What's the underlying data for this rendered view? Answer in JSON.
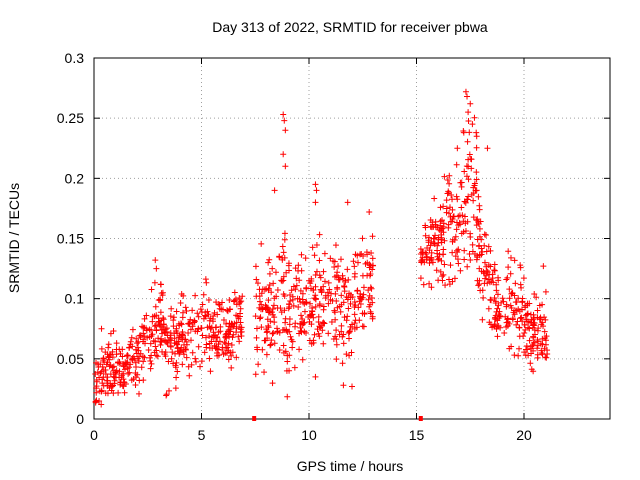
{
  "chart_data": {
    "type": "scatter",
    "title": "Day 313 of 2022, SRMTID for receiver pbwa",
    "xlabel": "GPS time / hours",
    "ylabel": "SRMTID / TECUs",
    "xlim": [
      0,
      24
    ],
    "ylim": [
      0,
      0.3
    ],
    "xticks": [
      0,
      5,
      10,
      15,
      20
    ],
    "xtick_labels": [
      "0",
      "5",
      "10",
      "15",
      "20"
    ],
    "yticks": [
      0,
      0.05,
      0.1,
      0.15,
      0.2,
      0.25,
      0.3
    ],
    "ytick_labels": [
      "0",
      "0.05",
      "0.1",
      "0.15",
      "0.2",
      "0.25",
      "0.3"
    ],
    "grid": true,
    "marker": "+",
    "color": "#ff0000",
    "baseline_markers": [
      7.45,
      15.2
    ],
    "series": [
      {
        "name": "SRMTID",
        "segments": [
          {
            "x_range": [
              0.0,
              0.7
            ],
            "mean": [
              0.028,
              0.045
            ],
            "spread": 0.014,
            "count": 50
          },
          {
            "x_range": [
              0.7,
              2.2
            ],
            "mean": [
              0.04,
              0.05
            ],
            "spread": 0.012,
            "count": 110
          },
          {
            "x_range": [
              2.2,
              3.3
            ],
            "mean": [
              0.06,
              0.082
            ],
            "spread": 0.016,
            "count": 80
          },
          {
            "x_range": [
              3.3,
              5.2
            ],
            "mean": [
              0.055,
              0.078
            ],
            "spread": 0.016,
            "count": 130
          },
          {
            "x_range": [
              5.2,
              6.5
            ],
            "mean": [
              0.072,
              0.075
            ],
            "spread": 0.015,
            "count": 100
          },
          {
            "x_range": [
              6.5,
              6.9
            ],
            "mean": [
              0.08,
              0.08
            ],
            "spread": 0.015,
            "count": 30
          },
          {
            "x_range": [
              7.5,
              8.6
            ],
            "mean": [
              0.085,
              0.095
            ],
            "spread": 0.02,
            "count": 80
          },
          {
            "x_range": [
              8.6,
              9.1
            ],
            "mean": [
              0.1,
              0.105
            ],
            "spread": 0.03,
            "count": 45
          },
          {
            "x_range": [
              9.1,
              10.5
            ],
            "mean": [
              0.09,
              0.1
            ],
            "spread": 0.022,
            "count": 100
          },
          {
            "x_range": [
              10.5,
              12.0
            ],
            "mean": [
              0.1,
              0.09
            ],
            "spread": 0.022,
            "count": 100
          },
          {
            "x_range": [
              12.0,
              13.0
            ],
            "mean": [
              0.095,
              0.11
            ],
            "spread": 0.02,
            "count": 70
          },
          {
            "x_range": [
              15.2,
              16.0
            ],
            "mean": [
              0.13,
              0.15
            ],
            "spread": 0.017,
            "count": 60
          },
          {
            "x_range": [
              16.0,
              17.0
            ],
            "mean": [
              0.15,
              0.16
            ],
            "spread": 0.025,
            "count": 80
          },
          {
            "x_range": [
              17.0,
              17.8
            ],
            "mean": [
              0.17,
              0.19
            ],
            "spread": 0.03,
            "count": 60
          },
          {
            "x_range": [
              17.8,
              18.5
            ],
            "mean": [
              0.16,
              0.1
            ],
            "spread": 0.025,
            "count": 60
          },
          {
            "x_range": [
              18.5,
              20.0
            ],
            "mean": [
              0.1,
              0.09
            ],
            "spread": 0.018,
            "count": 100
          },
          {
            "x_range": [
              20.0,
              21.1
            ],
            "mean": [
              0.07,
              0.07
            ],
            "spread": 0.015,
            "count": 90
          }
        ],
        "peaks": [
          {
            "x": 8.8,
            "y": 0.253
          },
          {
            "x": 8.85,
            "y": 0.248
          },
          {
            "x": 8.9,
            "y": 0.24
          },
          {
            "x": 8.8,
            "y": 0.22
          },
          {
            "x": 8.9,
            "y": 0.21
          },
          {
            "x": 8.4,
            "y": 0.19
          },
          {
            "x": 10.3,
            "y": 0.195
          },
          {
            "x": 10.35,
            "y": 0.19
          },
          {
            "x": 10.3,
            "y": 0.18
          },
          {
            "x": 11.8,
            "y": 0.18
          },
          {
            "x": 12.8,
            "y": 0.172
          },
          {
            "x": 17.3,
            "y": 0.272
          },
          {
            "x": 17.35,
            "y": 0.268
          },
          {
            "x": 17.5,
            "y": 0.262
          },
          {
            "x": 17.4,
            "y": 0.255
          },
          {
            "x": 17.6,
            "y": 0.245
          },
          {
            "x": 17.2,
            "y": 0.238
          },
          {
            "x": 17.8,
            "y": 0.235
          },
          {
            "x": 16.9,
            "y": 0.225
          },
          {
            "x": 18.3,
            "y": 0.225
          },
          {
            "x": 2.85,
            "y": 0.132
          },
          {
            "x": 2.9,
            "y": 0.125
          },
          {
            "x": 20.9,
            "y": 0.127
          },
          {
            "x": 0.35,
            "y": 0.075
          },
          {
            "x": 11.6,
            "y": 0.028
          },
          {
            "x": 12.0,
            "y": 0.027
          },
          {
            "x": 10.3,
            "y": 0.035
          }
        ]
      }
    ]
  }
}
